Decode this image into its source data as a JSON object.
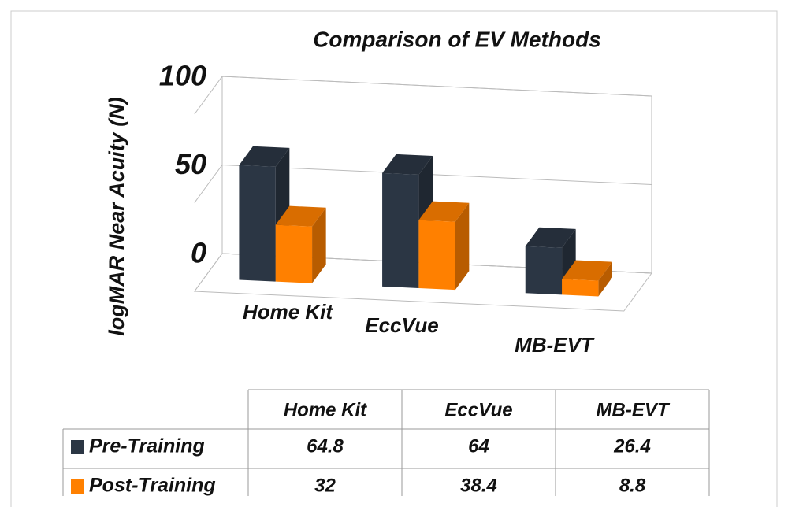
{
  "chart_data": {
    "type": "bar",
    "title": "Comparison of EV Methods",
    "y_label": "logMAR Near Acuity (N)",
    "categories": [
      "Home Kit",
      "EccVue",
      "MB-EVT"
    ],
    "series": [
      {
        "name": "Pre-Training",
        "color": "#2b3644",
        "values": [
          64.8,
          64,
          26.4
        ]
      },
      {
        "name": "Post-Training",
        "color": "#ff8000",
        "values": [
          32,
          38.4,
          8.8
        ]
      }
    ],
    "ylim": [
      0,
      100
    ],
    "yticks": [
      0,
      50,
      100
    ],
    "grid": true
  }
}
